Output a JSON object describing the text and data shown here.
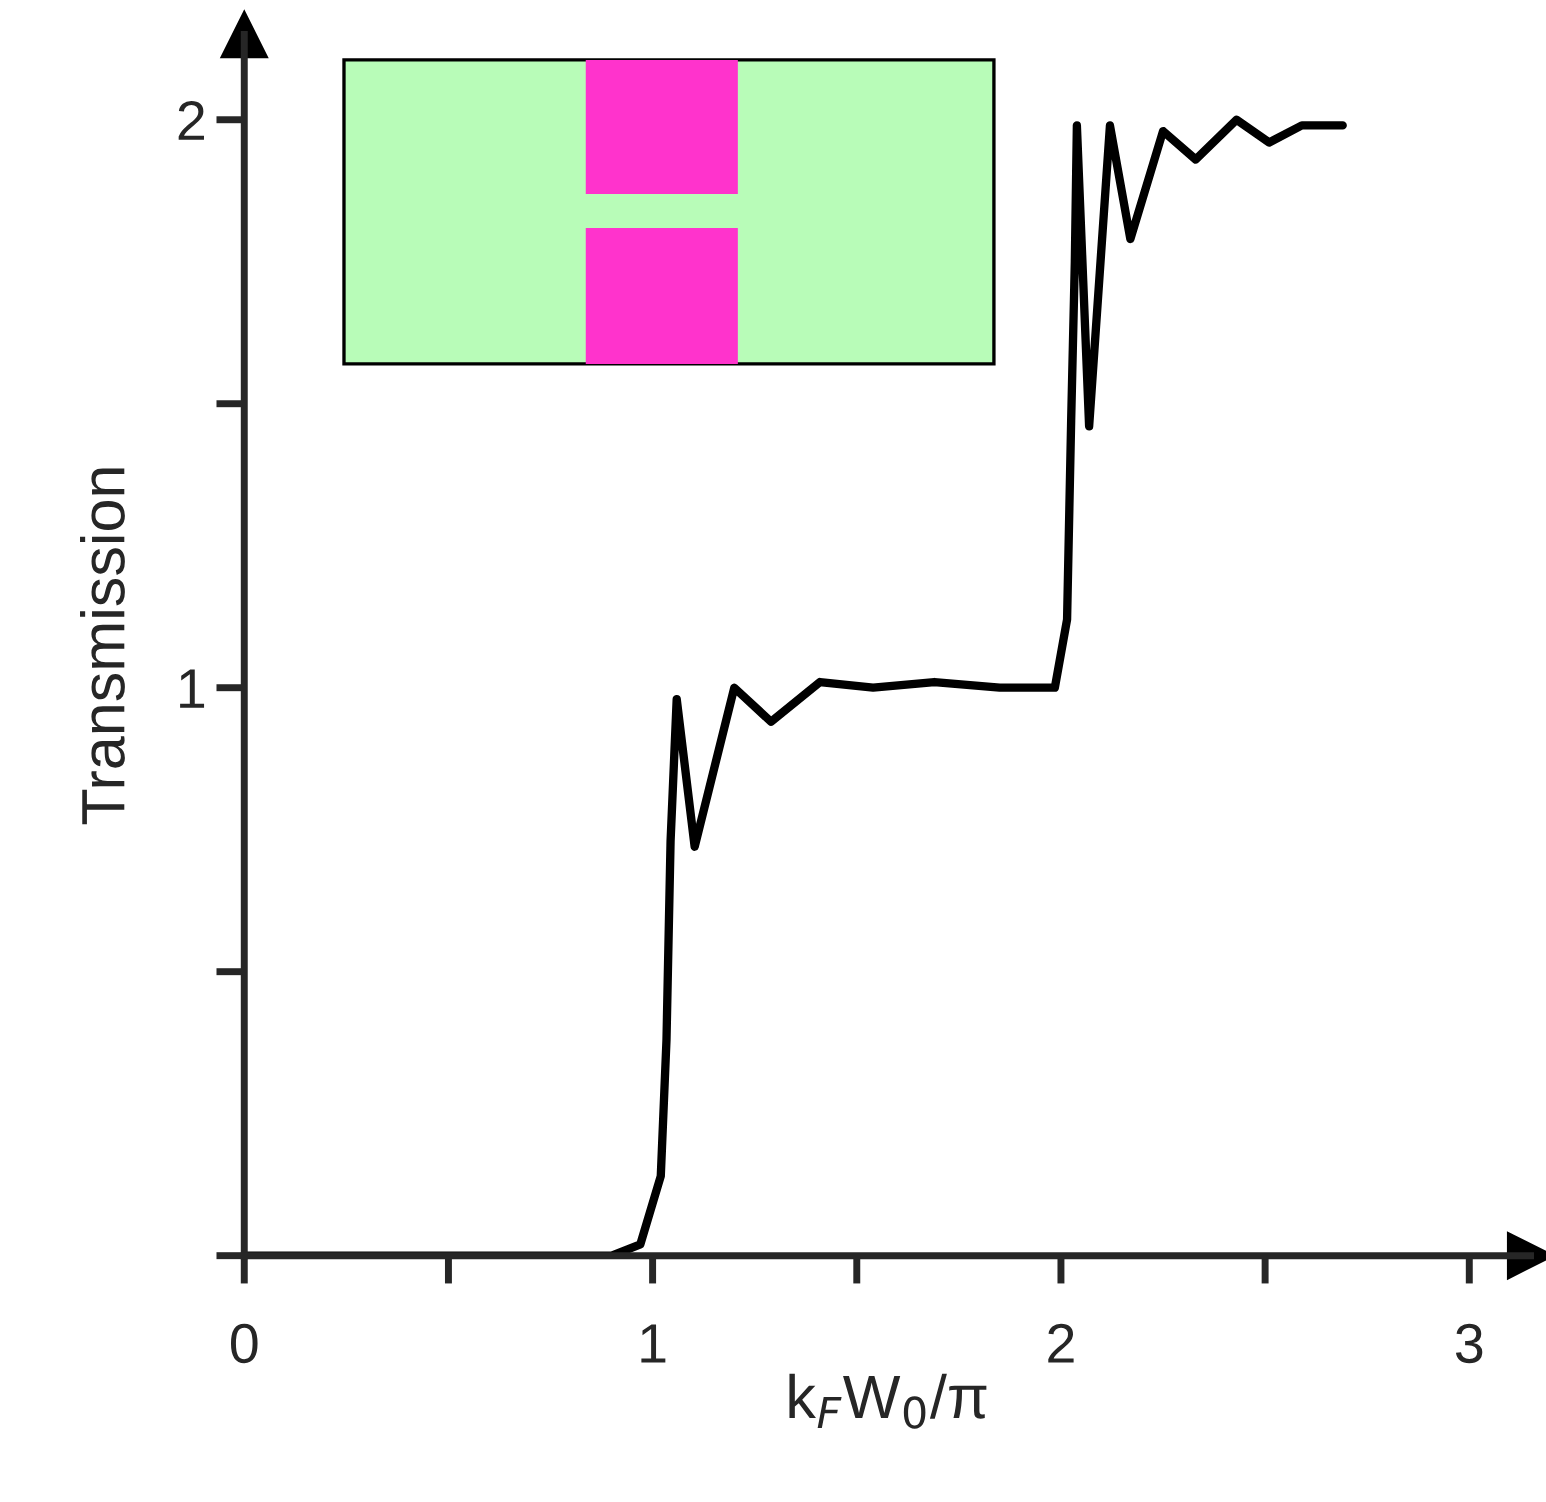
{
  "chart_data": {
    "type": "line",
    "xlabel": "k$_{F}$W$_{0}$/π",
    "ylabel": "Transmission",
    "x": [
      0.0,
      0.5,
      0.9,
      0.97,
      1.02,
      1.034,
      1.044,
      1.059,
      1.103,
      1.2,
      1.29,
      1.41,
      1.54,
      1.69,
      1.85,
      1.985,
      2.015,
      2.025,
      2.034,
      2.039,
      2.069,
      2.12,
      2.17,
      2.25,
      2.33,
      2.43,
      2.51,
      2.59,
      2.69
    ],
    "series": [
      {
        "color": "#000000",
        "values": [
          0,
          0,
          0,
          0.02,
          0.14,
          0.38,
          0.73,
          0.98,
          0.72,
          1.0,
          0.94,
          1.01,
          1.0,
          1.01,
          1.0,
          1.0,
          1.12,
          1.47,
          1.75,
          1.99,
          1.46,
          1.99,
          1.79,
          1.98,
          1.93,
          2.0,
          1.96,
          1.99,
          1.99
        ]
      }
    ],
    "xlim": [
      0,
      3.15
    ],
    "ylim": [
      0,
      2.15
    ],
    "xticks": [
      {
        "value": 0,
        "label": "0"
      },
      {
        "value": 0.5,
        "label": null
      },
      1,
      {
        "value": 1.5,
        "label": null
      },
      2,
      {
        "value": 2.5,
        "label": null
      },
      3
    ],
    "yticks": [
      {
        "value": 0,
        "label": null
      },
      {
        "value": 0.5,
        "label": null
      },
      1,
      {
        "value": 1.5,
        "label": null
      },
      2
    ],
    "grid": false,
    "legend": false,
    "marker": "none",
    "line_style": "solid"
  }
}
